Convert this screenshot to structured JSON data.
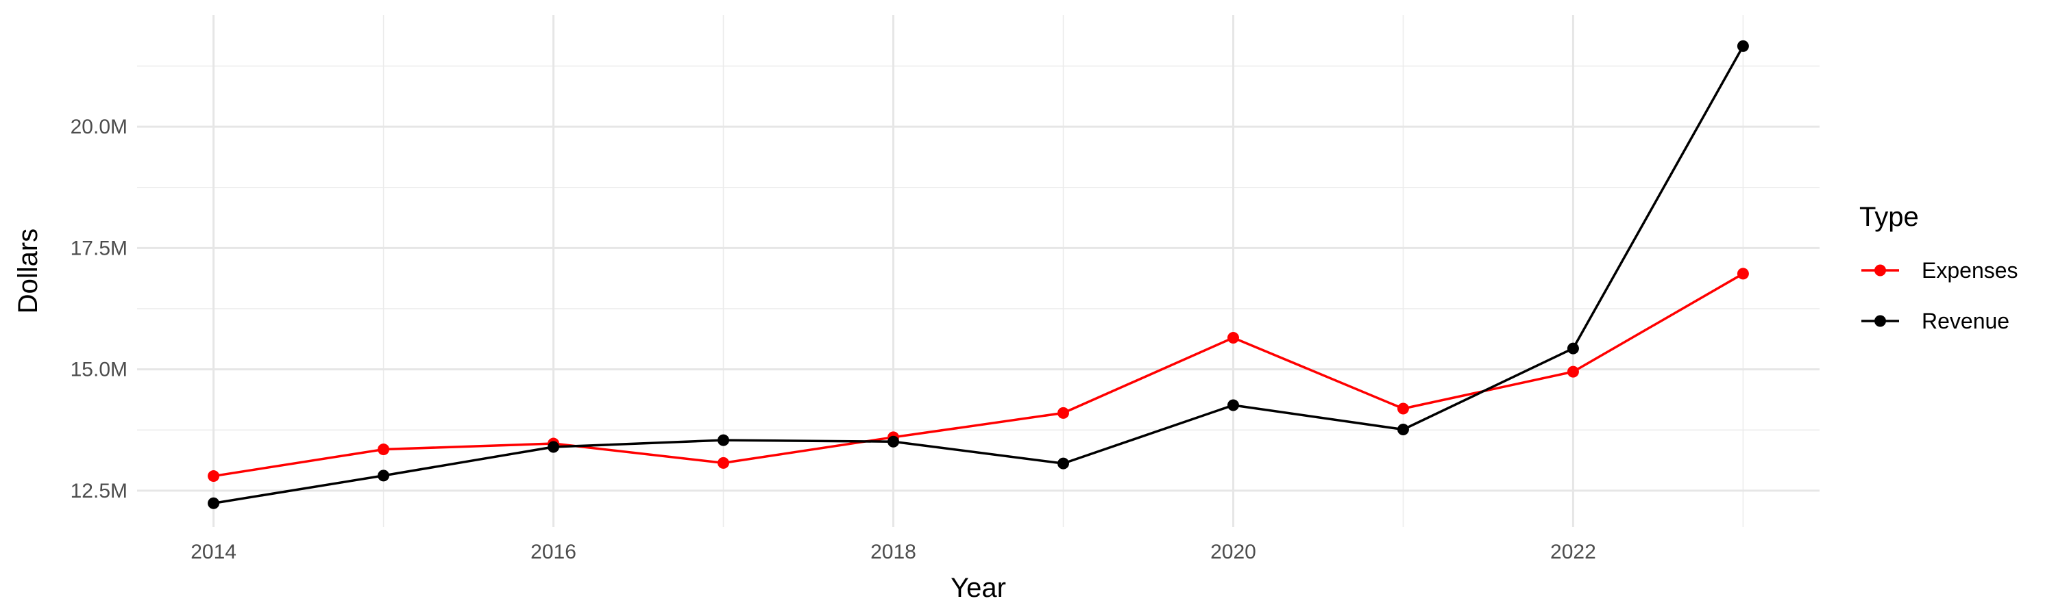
{
  "chart_data": {
    "type": "line",
    "title": "",
    "xlabel": "Year",
    "ylabel": "Dollars",
    "x": [
      2014,
      2015,
      2016,
      2017,
      2018,
      2019,
      2020,
      2021,
      2022,
      2023
    ],
    "x_ticks": [
      2014,
      2016,
      2018,
      2020,
      2022
    ],
    "x_tick_labels": [
      "2014",
      "2016",
      "2018",
      "2020",
      "2022"
    ],
    "xlim": [
      2013.55,
      2023.45
    ],
    "y_ticks": [
      12500000,
      15000000,
      17500000,
      20000000
    ],
    "y_tick_labels": [
      "12.5M",
      "15.0M",
      "17.5M",
      "20.0M"
    ],
    "ylim": [
      11750000,
      22300000
    ],
    "grid": true,
    "legend": {
      "title": "Type",
      "position": "right"
    },
    "series": [
      {
        "name": "Expenses",
        "color": "#ff0000",
        "values": [
          12800000,
          13350000,
          13470000,
          13070000,
          13600000,
          14100000,
          15650000,
          14190000,
          14950000,
          16970000
        ]
      },
      {
        "name": "Revenue",
        "color": "#000000",
        "values": [
          12240000,
          12810000,
          13400000,
          13540000,
          13510000,
          13060000,
          14260000,
          13760000,
          15430000,
          21660000
        ]
      }
    ]
  }
}
